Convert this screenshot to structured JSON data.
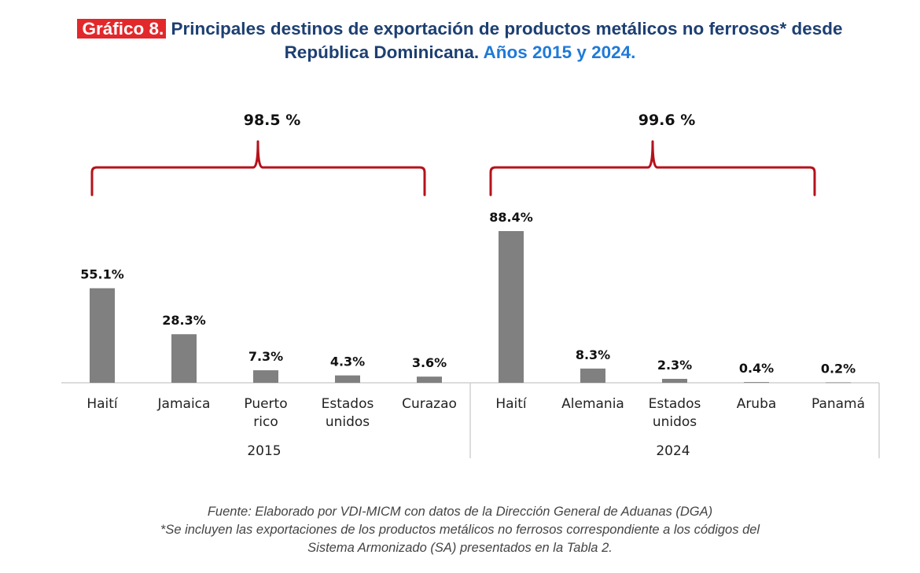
{
  "header": {
    "badge": "Gráfico 8.",
    "title_part1": "Principales destinos de exportación de productos metálicos no ferrosos* desde",
    "title_part2": "República Dominicana.",
    "title_accent": "Años 2015 y 2024."
  },
  "colors": {
    "bar": "#808080",
    "brace": "#b5121b",
    "badge_bg": "#e2282b",
    "title": "#1d3f72",
    "title_accent": "#1f7ad8",
    "axis": "#d0d0d0"
  },
  "chart_data": {
    "type": "bar",
    "title": "Principales destinos de exportación de productos metálicos no ferrosos* desde República Dominicana. Años 2015 y 2024.",
    "xlabel": "",
    "ylabel": "",
    "ylim": [
      0,
      100
    ],
    "grid": false,
    "legend": "none",
    "unit": "%",
    "groups": [
      {
        "name": "2015",
        "bracket_total": "98.5 %",
        "categories": [
          "Haití",
          "Jamaica",
          "Puerto rico",
          "Estados unidos",
          "Curazao"
        ],
        "category_lines": [
          [
            "Haití"
          ],
          [
            "Jamaica"
          ],
          [
            "Puerto",
            "rico"
          ],
          [
            "Estados",
            "unidos"
          ],
          [
            "Curazao"
          ]
        ],
        "values": [
          55.1,
          28.3,
          7.3,
          4.3,
          3.6
        ],
        "labels": [
          "55.1%",
          "28.3%",
          "7.3%",
          "4.3%",
          "3.6%"
        ]
      },
      {
        "name": "2024",
        "bracket_total": "99.6 %",
        "categories": [
          "Haití",
          "Alemania",
          "Estados unidos",
          "Aruba",
          "Panamá"
        ],
        "category_lines": [
          [
            "Haití"
          ],
          [
            "Alemania"
          ],
          [
            "Estados",
            "unidos"
          ],
          [
            "Aruba"
          ],
          [
            "Panamá"
          ]
        ],
        "values": [
          88.4,
          8.3,
          2.3,
          0.4,
          0.2
        ],
        "labels": [
          "88.4%",
          "8.3%",
          "2.3%",
          "0.4%",
          "0.2%"
        ]
      }
    ]
  },
  "footer": {
    "source": "Fuente: Elaborado por VDI-MICM con datos de la Dirección General de Aduanas (DGA)",
    "note_line1": "*Se incluyen las exportaciones de los productos metálicos no ferrosos correspondiente a los códigos del",
    "note_line2": "Sistema Armonizado (SA) presentados en la Tabla 2."
  }
}
